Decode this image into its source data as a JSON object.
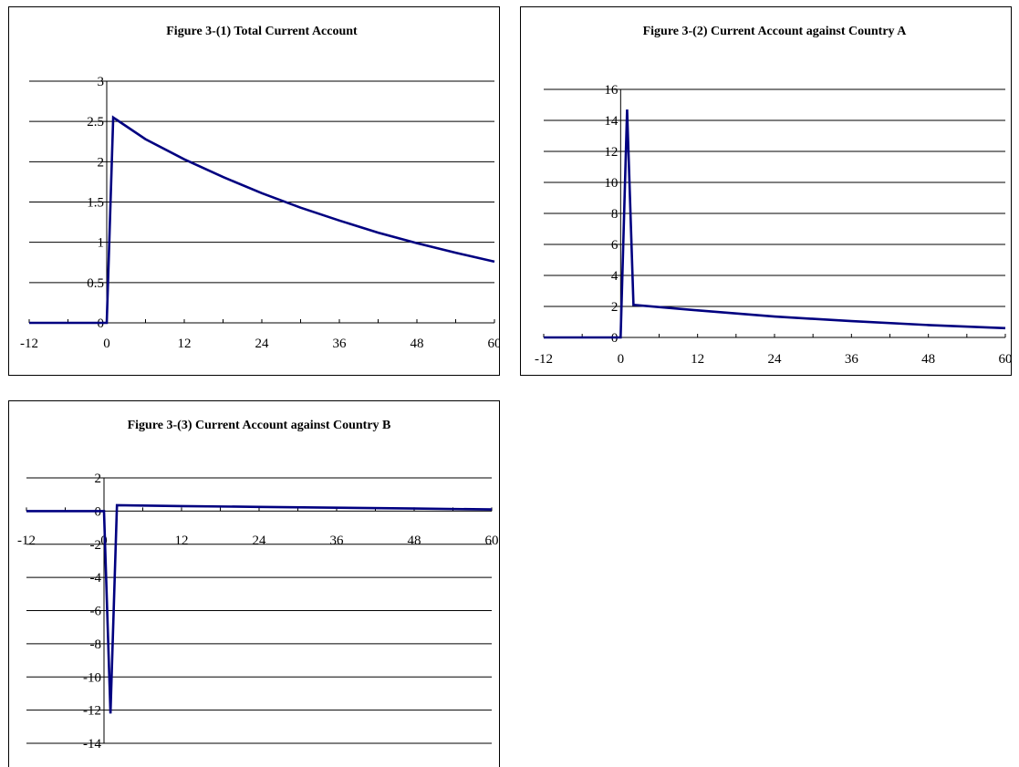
{
  "chart_data": [
    {
      "type": "line",
      "title": "Figure 3-(1)  Total Current Account",
      "xlabel": "",
      "ylabel": "",
      "xlim": [
        -12,
        60
      ],
      "ylim": [
        0,
        3
      ],
      "x_ticks": [
        -12,
        0,
        12,
        24,
        36,
        48,
        60
      ],
      "y_ticks": [
        0,
        0.5,
        1,
        1.5,
        2,
        2.5,
        3
      ],
      "x_tick_labels": [
        "-12",
        "0",
        "12",
        "24",
        "36",
        "48",
        "60"
      ],
      "y_tick_labels": [
        "0",
        "0.5",
        "1",
        "1.5",
        "2",
        "2.5",
        "3"
      ],
      "grid": "horizontal",
      "legend": "none",
      "color": "#000080",
      "series": [
        {
          "x": [
            -12,
            0,
            1,
            6,
            12,
            18,
            24,
            30,
            36,
            42,
            48,
            54,
            60
          ],
          "y": [
            0,
            0,
            2.55,
            2.28,
            2.03,
            1.81,
            1.61,
            1.43,
            1.27,
            1.12,
            0.99,
            0.87,
            0.76
          ]
        }
      ]
    },
    {
      "type": "line",
      "title": "Figure 3-(2)  Current Account against Country A",
      "xlabel": "",
      "ylabel": "",
      "xlim": [
        -12,
        60
      ],
      "ylim": [
        0,
        16
      ],
      "x_ticks": [
        -12,
        0,
        12,
        24,
        36,
        48,
        60
      ],
      "y_ticks": [
        0,
        2,
        4,
        6,
        8,
        10,
        12,
        14,
        16
      ],
      "x_tick_labels": [
        "-12",
        "0",
        "12",
        "24",
        "36",
        "48",
        "60"
      ],
      "y_tick_labels": [
        "0",
        "2",
        "4",
        "6",
        "8",
        "10",
        "12",
        "14",
        "16"
      ],
      "grid": "horizontal",
      "legend": "none",
      "color": "#000080",
      "series": [
        {
          "x": [
            -12,
            0,
            1,
            2,
            12,
            24,
            36,
            48,
            60
          ],
          "y": [
            0,
            0,
            14.7,
            2.1,
            1.75,
            1.35,
            1.05,
            0.8,
            0.6
          ]
        }
      ]
    },
    {
      "type": "line",
      "title": "Figure 3-(3)  Current Account against Country B",
      "xlabel": "",
      "ylabel": "",
      "xlim": [
        -12,
        60
      ],
      "ylim": [
        -14,
        2
      ],
      "x_ticks": [
        -12,
        0,
        12,
        24,
        36,
        48,
        60
      ],
      "y_ticks": [
        2,
        0,
        -2,
        -4,
        -6,
        -8,
        -10,
        -12,
        -14
      ],
      "x_tick_labels": [
        "-12",
        "0",
        "12",
        "24",
        "36",
        "48",
        "60"
      ],
      "y_tick_labels": [
        "2",
        "0",
        "-2",
        "-4",
        "-6",
        "-8",
        "-10",
        "-12",
        "-14"
      ],
      "grid": "horizontal",
      "legend": "none",
      "color": "#000080",
      "series": [
        {
          "x": [
            -12,
            0,
            1,
            2,
            12,
            24,
            36,
            48,
            60
          ],
          "y": [
            0,
            0,
            -12.2,
            0.35,
            0.3,
            0.25,
            0.2,
            0.15,
            0.1
          ]
        }
      ]
    }
  ]
}
